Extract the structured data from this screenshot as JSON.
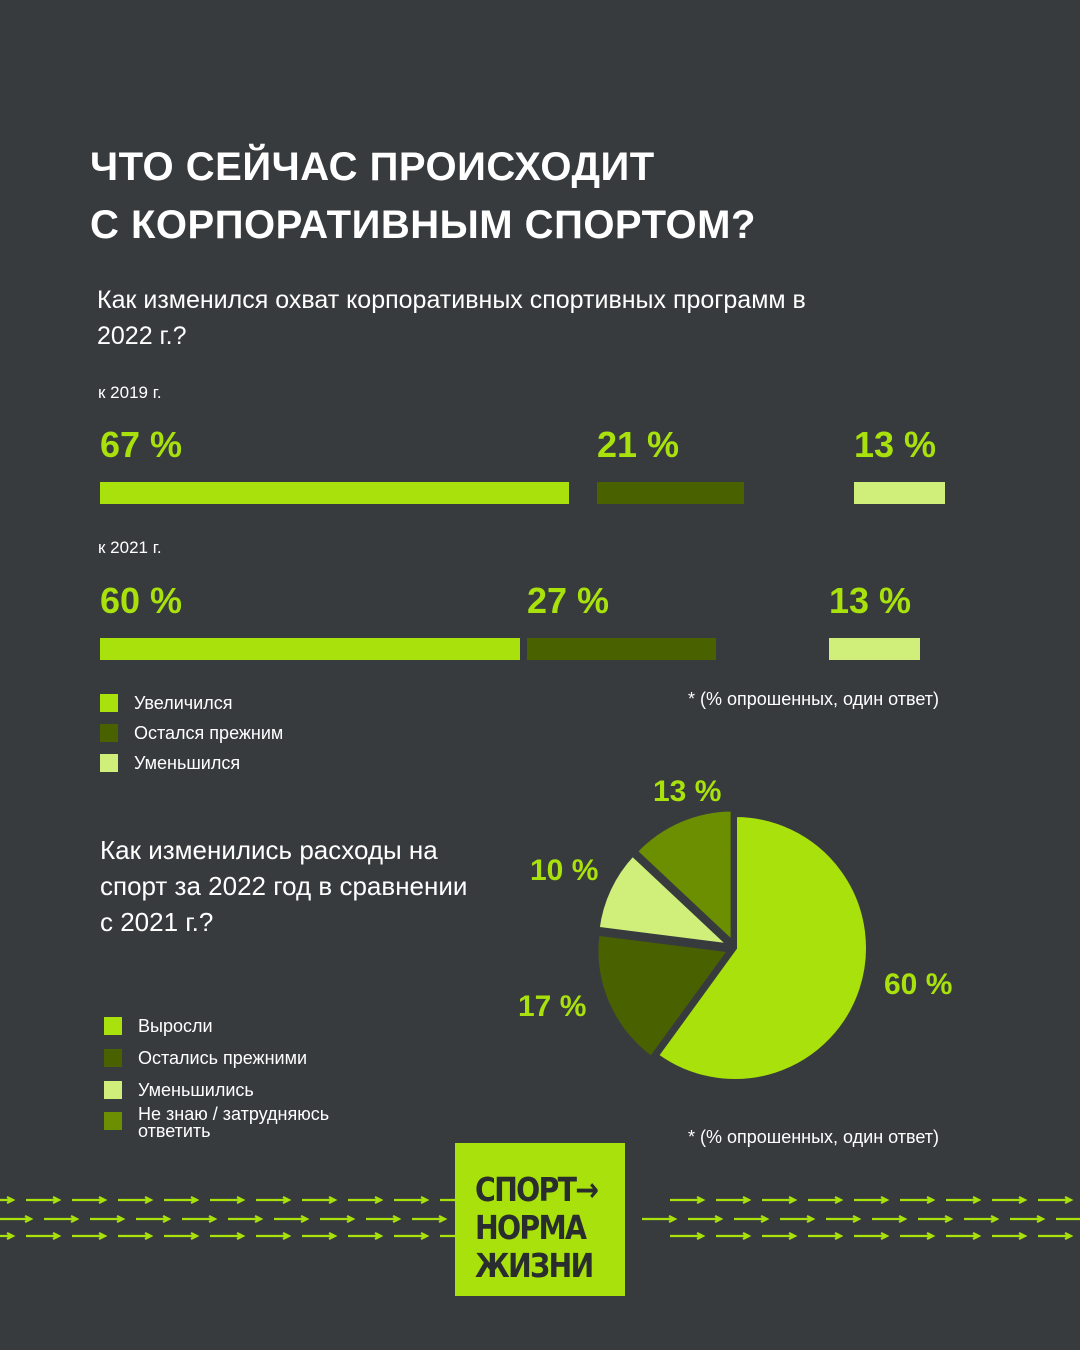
{
  "title": {
    "line1": "ЧТО СЕЙЧАС ПРОИСХОДИТ",
    "line2": "С КОРПОРАТИВНЫМ СПОРТОМ?"
  },
  "colors": {
    "background": "#373b3d",
    "increased": "#a8e10c",
    "same": "#4a6100",
    "decreased": "#cfee7a",
    "dont_know": "#6b8f00"
  },
  "chart_data": [
    {
      "type": "bar",
      "title": "Как изменился охват корпоративных спортивных программ в 2022 г.?",
      "groups": [
        {
          "label": "к 2019 г.",
          "values": [
            67,
            21,
            13
          ],
          "value_labels": [
            "67 %",
            "21 %",
            "13 %"
          ]
        },
        {
          "label": "к 2021 г.",
          "values": [
            60,
            27,
            13
          ],
          "value_labels": [
            "60 %",
            "27 %",
            "13 %"
          ]
        }
      ],
      "series": [
        {
          "name": "Увеличился",
          "color": "#a8e10c"
        },
        {
          "name": "Остался прежним",
          "color": "#4a6100"
        },
        {
          "name": "Уменьшился",
          "color": "#cfee7a"
        }
      ],
      "note": "* (% опрошенных, один ответ)"
    },
    {
      "type": "pie",
      "title": "Как изменились расходы на спорт за 2022 год в сравнении с 2021 г.?",
      "slices": [
        {
          "name": "Выросли",
          "value": 60,
          "label": "60 %",
          "color": "#a8e10c"
        },
        {
          "name": "Остались прежними",
          "value": 17,
          "label": "17 %",
          "color": "#4a6100"
        },
        {
          "name": "Уменьшились",
          "value": 10,
          "label": "10 %",
          "color": "#cfee7a"
        },
        {
          "name": "Не знаю / затрудняюсь ответить",
          "value": 13,
          "label": "13 %",
          "color": "#6b8f00"
        }
      ],
      "note": "* (% опрошенных, один ответ)"
    }
  ],
  "logo": {
    "line1": "СПОРТ",
    "arrow": "→",
    "line2": "НОРМА",
    "line3": "ЖИЗНИ"
  }
}
